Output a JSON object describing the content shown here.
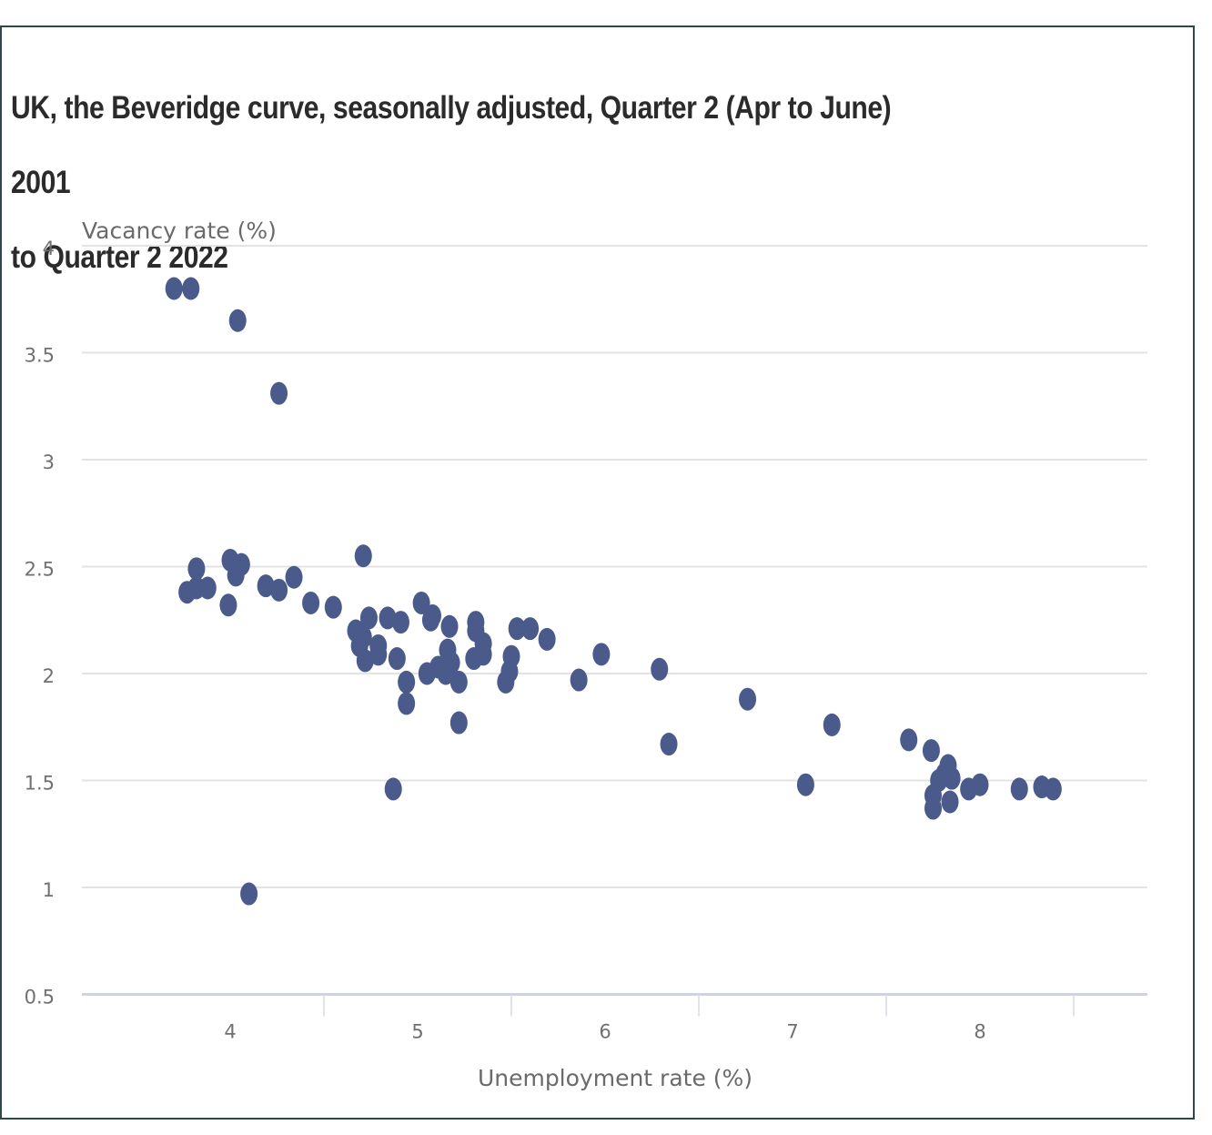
{
  "chart_data": {
    "type": "scatter",
    "title": "UK, the Beveridge curve, seasonally adjusted, Quarter 2 (Apr to June) 2001 to Quarter 2 2022",
    "title_lines": [
      "UK, the Beveridge curve, seasonally adjusted, Quarter 2 (Apr to June) 2001",
      "to Quarter 2 2022"
    ],
    "xlabel": "Unemployment rate (%)",
    "ylabel": "Vacancy rate (%)",
    "xlim": [
      3.0,
      8.5
    ],
    "ylim": [
      0.5,
      4.0
    ],
    "x_ticks": [
      4,
      5,
      6,
      7,
      8
    ],
    "x_tick_labels": [
      "4",
      "5",
      "6",
      "7",
      "8"
    ],
    "y_ticks": [
      0.5,
      1,
      1.5,
      2,
      2.5,
      3,
      3.5,
      4
    ],
    "y_tick_labels": [
      "0.5",
      "1",
      "1.5",
      "2",
      "2.5",
      "3",
      "3.5",
      "4"
    ],
    "grid": "horizontal",
    "legend": "none",
    "marker_color": "#4a5a8a",
    "series": [
      {
        "name": "Quarterly observations",
        "points": [
          [
            3.7,
            3.8
          ],
          [
            3.79,
            3.8
          ],
          [
            4.04,
            3.65
          ],
          [
            4.26,
            3.31
          ],
          [
            3.82,
            2.49
          ],
          [
            3.77,
            2.38
          ],
          [
            3.82,
            2.4
          ],
          [
            3.88,
            2.4
          ],
          [
            3.99,
            2.32
          ],
          [
            4.0,
            2.53
          ],
          [
            4.06,
            2.51
          ],
          [
            4.03,
            2.46
          ],
          [
            4.19,
            2.41
          ],
          [
            4.26,
            2.39
          ],
          [
            4.34,
            2.45
          ],
          [
            4.43,
            2.33
          ],
          [
            4.55,
            2.31
          ],
          [
            4.71,
            2.55
          ],
          [
            4.67,
            2.2
          ],
          [
            4.74,
            2.26
          ],
          [
            4.69,
            2.13
          ],
          [
            4.72,
            2.06
          ],
          [
            4.71,
            2.17
          ],
          [
            4.79,
            2.13
          ],
          [
            4.79,
            2.09
          ],
          [
            4.84,
            2.26
          ],
          [
            4.91,
            2.24
          ],
          [
            4.89,
            2.07
          ],
          [
            4.94,
            1.96
          ],
          [
            4.94,
            1.86
          ],
          [
            4.87,
            1.46
          ],
          [
            5.02,
            2.33
          ],
          [
            5.07,
            2.25
          ],
          [
            5.08,
            2.27
          ],
          [
            5.05,
            2.0
          ],
          [
            5.11,
            2.03
          ],
          [
            5.16,
            2.11
          ],
          [
            5.17,
            2.22
          ],
          [
            5.15,
            2.0
          ],
          [
            5.18,
            2.05
          ],
          [
            5.22,
            1.96
          ],
          [
            5.22,
            1.77
          ],
          [
            5.31,
            2.24
          ],
          [
            5.31,
            2.2
          ],
          [
            5.35,
            2.14
          ],
          [
            5.35,
            2.09
          ],
          [
            5.3,
            2.07
          ],
          [
            5.5,
            2.08
          ],
          [
            5.49,
            2.01
          ],
          [
            5.47,
            1.96
          ],
          [
            5.53,
            2.21
          ],
          [
            5.6,
            2.21
          ],
          [
            5.69,
            2.16
          ],
          [
            5.86,
            1.97
          ],
          [
            5.98,
            2.09
          ],
          [
            6.29,
            2.02
          ],
          [
            6.34,
            1.67
          ],
          [
            6.76,
            1.88
          ],
          [
            7.07,
            1.48
          ],
          [
            7.21,
            1.76
          ],
          [
            7.62,
            1.69
          ],
          [
            7.74,
            1.64
          ],
          [
            7.83,
            1.57
          ],
          [
            7.81,
            1.53
          ],
          [
            7.78,
            1.5
          ],
          [
            7.85,
            1.51
          ],
          [
            7.75,
            1.43
          ],
          [
            7.75,
            1.37
          ],
          [
            7.84,
            1.4
          ],
          [
            7.94,
            1.46
          ],
          [
            8.0,
            1.48
          ],
          [
            8.21,
            1.46
          ],
          [
            8.33,
            1.47
          ],
          [
            8.39,
            1.46
          ],
          [
            4.1,
            0.97
          ]
        ]
      }
    ]
  }
}
